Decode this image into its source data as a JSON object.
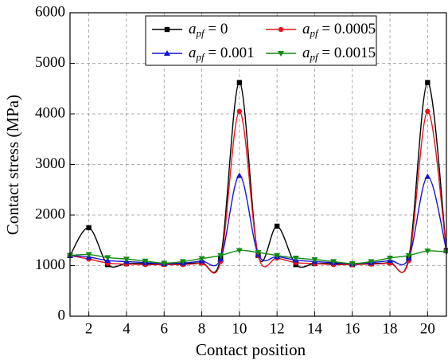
{
  "chart_data": {
    "type": "line",
    "xlabel": "Contact position",
    "ylabel": "Contact stress (MPa)",
    "x": [
      1,
      2,
      3,
      4,
      5,
      6,
      7,
      8,
      9,
      10,
      11,
      12,
      13,
      14,
      15,
      16,
      17,
      18,
      19,
      20,
      21
    ],
    "xlim": [
      1,
      21
    ],
    "xticks": [
      2,
      4,
      6,
      8,
      10,
      12,
      14,
      16,
      18,
      20
    ],
    "ylim": [
      0,
      6000
    ],
    "yticks": [
      0,
      1000,
      2000,
      3000,
      4000,
      5000,
      6000
    ],
    "grid": true,
    "legend": "top",
    "series": [
      {
        "name": "apf = 0",
        "color": "#000000",
        "marker": "square",
        "values": [
          1200,
          1750,
          1020,
          1040,
          1040,
          1030,
          1040,
          1060,
          1150,
          4620,
          1200,
          1780,
          1020,
          1040,
          1040,
          1020,
          1040,
          1060,
          1150,
          4620,
          1300
        ]
      },
      {
        "name": "apf = 0.0005",
        "color": "#e8141c",
        "marker": "circle",
        "values": [
          1200,
          1130,
          1050,
          1030,
          1020,
          1020,
          1020,
          1050,
          1080,
          4050,
          1200,
          1150,
          1060,
          1040,
          1020,
          1020,
          1030,
          1050,
          1100,
          4050,
          1300
        ]
      },
      {
        "name": "apf = 0.001",
        "color": "#1515d0",
        "marker": "triangle-up",
        "values": [
          1200,
          1170,
          1100,
          1080,
          1060,
          1040,
          1050,
          1090,
          1130,
          2780,
          1220,
          1180,
          1110,
          1080,
          1060,
          1040,
          1060,
          1100,
          1150,
          2760,
          1300
        ]
      },
      {
        "name": "apf = 0.0015",
        "color": "#138a13",
        "marker": "triangle-down",
        "values": [
          1200,
          1220,
          1160,
          1130,
          1090,
          1050,
          1080,
          1140,
          1200,
          1300,
          1260,
          1200,
          1150,
          1120,
          1080,
          1040,
          1080,
          1150,
          1200,
          1290,
          1270
        ]
      }
    ]
  }
}
